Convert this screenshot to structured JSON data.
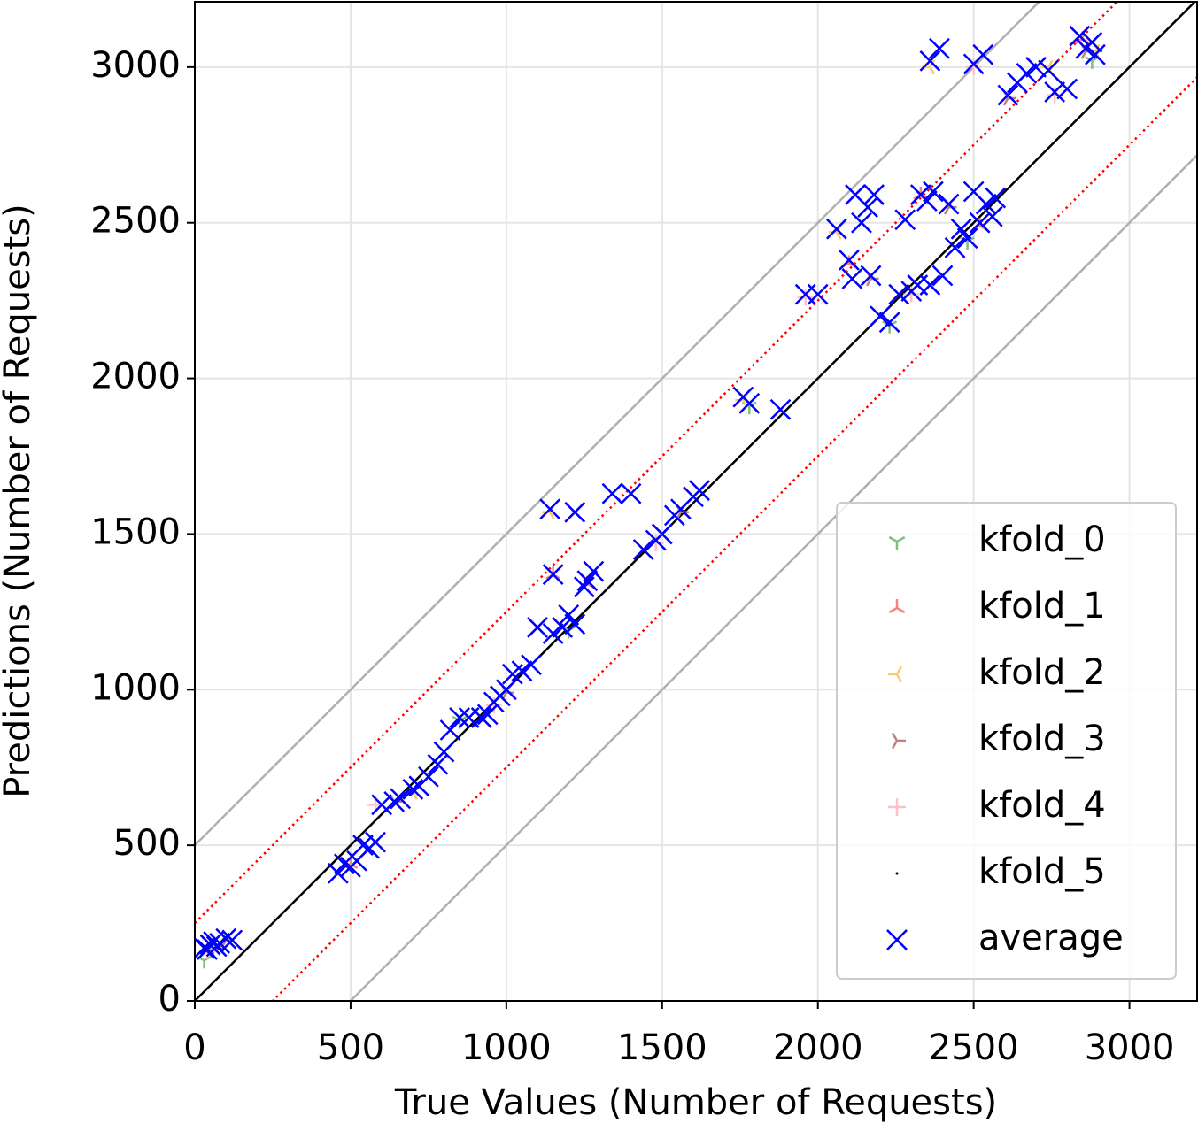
{
  "chart_data": {
    "type": "scatter",
    "x_label": "True Values (Number of Requests)",
    "y_label": "Predictions (Number of Requests)",
    "xlim": [
      0,
      3220
    ],
    "ylim": [
      0,
      3210
    ],
    "xticks": [
      0,
      500,
      1000,
      1500,
      2000,
      2500,
      3000
    ],
    "yticks": [
      0,
      500,
      1000,
      1500,
      2000,
      2500,
      3000
    ],
    "grid": true,
    "legend": "lower right",
    "reference_lines": [
      {
        "offset": 0,
        "color": "#000000",
        "style": "solid"
      },
      {
        "offset": 250,
        "color": "#ff0000",
        "style": "dotted"
      },
      {
        "offset": -250,
        "color": "#ff0000",
        "style": "dotted"
      },
      {
        "offset": 500,
        "color": "#b0b0b0",
        "style": "solid"
      },
      {
        "offset": -500,
        "color": "#b0b0b0",
        "style": "solid"
      }
    ],
    "series": [
      {
        "name": "kfold_0",
        "color": "#7fbf7f",
        "marker": "tri_down",
        "x": [
          30,
          60,
          850,
          1200,
          2230,
          2480,
          2880,
          1780
        ],
        "values": [
          130,
          160,
          900,
          1190,
          2170,
          2440,
          3020,
          1910
        ]
      },
      {
        "name": "kfold_1",
        "color": "#ff7f7f",
        "marker": "tri_up",
        "x": [
          50,
          500,
          1150,
          1260,
          2100,
          2330,
          2520,
          2850
        ],
        "values": [
          175,
          440,
          1370,
          1340,
          2370,
          2590,
          2490,
          3090
        ]
      },
      {
        "name": "kfold_2",
        "color": "#ffc966",
        "marker": "tri_left",
        "x": [
          80,
          700,
          1140,
          1760,
          2060,
          2360,
          2740,
          2890
        ],
        "values": [
          180,
          670,
          1570,
          1930,
          2470,
          3000,
          3000,
          3050
        ]
      },
      {
        "name": "kfold_3",
        "color": "#c08080",
        "marker": "tri_right",
        "x": [
          100,
          640,
          1000,
          1560,
          2170,
          2420,
          2610,
          2860
        ],
        "values": [
          195,
          640,
          990,
          1570,
          2320,
          2550,
          2900,
          3050
        ]
      },
      {
        "name": "kfold_4",
        "color": "#ffc0cb",
        "marker": "plus",
        "x": [
          40,
          580,
          960,
          1480,
          1960,
          2300,
          2500,
          2760
        ],
        "values": [
          160,
          630,
          950,
          1470,
          2260,
          2270,
          3000,
          2910
        ]
      },
      {
        "name": "kfold_5",
        "color": "#000000",
        "marker": "point",
        "x": [
          60,
          800,
          1600,
          2200,
          2840
        ],
        "values": [
          185,
          800,
          1620,
          2200,
          3100
        ]
      },
      {
        "name": "average",
        "color": "#0000ff",
        "marker": "x",
        "x": [
          30,
          50,
          60,
          80,
          100,
          120,
          40,
          70,
          460,
          480,
          500,
          520,
          540,
          560,
          580,
          600,
          640,
          660,
          700,
          720,
          750,
          780,
          800,
          820,
          850,
          880,
          920,
          940,
          960,
          980,
          1000,
          1020,
          1050,
          1080,
          1100,
          1150,
          1180,
          1200,
          1220,
          1250,
          1260,
          1280,
          1150,
          1140,
          1220,
          1340,
          1400,
          1440,
          1480,
          1500,
          1540,
          1560,
          1600,
          1620,
          1760,
          1780,
          1880,
          1960,
          2000,
          2060,
          2100,
          2110,
          2120,
          2140,
          2160,
          2180,
          2170,
          2200,
          2230,
          2260,
          2280,
          2300,
          2320,
          2330,
          2350,
          2360,
          2370,
          2400,
          2420,
          2440,
          2460,
          2480,
          2500,
          2520,
          2540,
          2560,
          2570,
          2360,
          2390,
          2500,
          2530,
          2610,
          2640,
          2670,
          2700,
          2740,
          2760,
          2800,
          2840,
          2860,
          2880,
          2890
        ],
        "values": [
          170,
          180,
          190,
          185,
          200,
          195,
          165,
          175,
          410,
          440,
          430,
          450,
          500,
          490,
          510,
          630,
          640,
          650,
          680,
          690,
          720,
          760,
          800,
          870,
          910,
          910,
          910,
          920,
          960,
          980,
          1000,
          1050,
          1060,
          1080,
          1200,
          1180,
          1200,
          1240,
          1210,
          1330,
          1350,
          1380,
          1370,
          1580,
          1570,
          1630,
          1630,
          1450,
          1480,
          1500,
          1560,
          1580,
          1620,
          1640,
          1940,
          1920,
          1900,
          2270,
          2270,
          2480,
          2380,
          2320,
          2590,
          2500,
          2550,
          2590,
          2330,
          2200,
          2180,
          2270,
          2510,
          2280,
          2300,
          2590,
          2570,
          2300,
          2600,
          2330,
          2560,
          2420,
          2480,
          2450,
          2600,
          2500,
          2560,
          2520,
          2580,
          3020,
          3060,
          3010,
          3040,
          2910,
          2950,
          2980,
          3000,
          2990,
          2920,
          2930,
          3100,
          3060,
          3080,
          3040
        ]
      }
    ]
  }
}
